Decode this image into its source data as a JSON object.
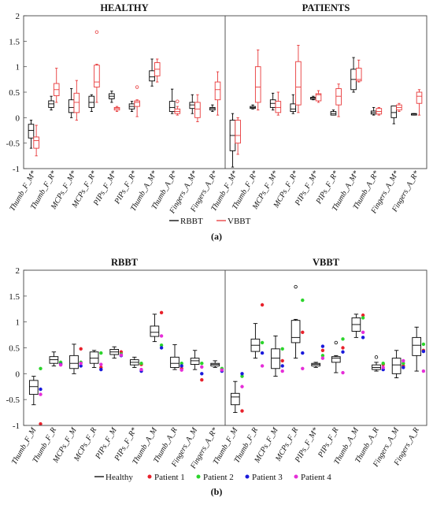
{
  "chart_data": [
    {
      "type": "box",
      "subfigure": "(a)",
      "ylim": [
        -1,
        2
      ],
      "yticks": [
        -1,
        -0.5,
        0,
        0.5,
        1,
        1.5,
        2
      ],
      "colors": {
        "RBBT": "#000000",
        "VBBT": "#e8393a"
      },
      "legend": [
        {
          "name": "RBBT",
          "color": "#000000"
        },
        {
          "name": "VBBT",
          "color": "#e8393a"
        }
      ],
      "panels": [
        {
          "title": "HEALTHY",
          "categories": [
            "Thumb_F_M*",
            "Thumb_F_R*",
            "MCPs_F_M*",
            "MCPs_F_R*",
            "PIPs_F_M*",
            "PIPs_F_R*",
            "Thumb_A_M*",
            "Thumb_A_R*",
            "Fingers_A_M*",
            "Fingers_A_R*"
          ],
          "series": [
            {
              "name": "RBBT",
              "boxes": [
                {
                  "whislo": -0.6,
                  "q1": -0.4,
                  "med": -0.25,
                  "q3": -0.13,
                  "whishi": -0.05,
                  "fliers": []
                },
                {
                  "whislo": 0.15,
                  "q1": 0.2,
                  "med": 0.27,
                  "q3": 0.33,
                  "whishi": 0.42,
                  "fliers": []
                },
                {
                  "whislo": 0.0,
                  "q1": 0.1,
                  "med": 0.2,
                  "q3": 0.35,
                  "whishi": 0.57,
                  "fliers": []
                },
                {
                  "whislo": 0.12,
                  "q1": 0.2,
                  "med": 0.3,
                  "q3": 0.42,
                  "whishi": 0.45,
                  "fliers": []
                },
                {
                  "whislo": 0.3,
                  "q1": 0.37,
                  "med": 0.42,
                  "q3": 0.47,
                  "whishi": 0.52,
                  "fliers": []
                },
                {
                  "whislo": 0.12,
                  "q1": 0.17,
                  "med": 0.22,
                  "q3": 0.27,
                  "whishi": 0.32,
                  "fliers": []
                },
                {
                  "whislo": 0.62,
                  "q1": 0.72,
                  "med": 0.8,
                  "q3": 0.92,
                  "whishi": 1.15,
                  "fliers": []
                },
                {
                  "whislo": 0.08,
                  "q1": 0.12,
                  "med": 0.2,
                  "q3": 0.32,
                  "whishi": 0.56,
                  "fliers": []
                },
                {
                  "whislo": 0.08,
                  "q1": 0.18,
                  "med": 0.25,
                  "q3": 0.3,
                  "whishi": 0.45,
                  "fliers": []
                },
                {
                  "whislo": 0.12,
                  "q1": 0.15,
                  "med": 0.18,
                  "q3": 0.2,
                  "whishi": 0.25,
                  "fliers": []
                }
              ]
            },
            {
              "name": "VBBT",
              "boxes": [
                {
                  "whislo": -0.75,
                  "q1": -0.6,
                  "med": -0.45,
                  "q3": -0.38,
                  "whishi": -0.15,
                  "fliers": []
                },
                {
                  "whislo": 0.3,
                  "q1": 0.43,
                  "med": 0.55,
                  "q3": 0.67,
                  "whishi": 0.97,
                  "fliers": []
                },
                {
                  "whislo": -0.05,
                  "q1": 0.1,
                  "med": 0.3,
                  "q3": 0.48,
                  "whishi": 0.73,
                  "fliers": []
                },
                {
                  "whislo": 0.3,
                  "q1": 0.6,
                  "med": 0.7,
                  "q3": 1.03,
                  "whishi": 1.05,
                  "fliers": [
                    1.68
                  ]
                },
                {
                  "whislo": 0.12,
                  "q1": 0.15,
                  "med": 0.18,
                  "q3": 0.2,
                  "whishi": 0.22,
                  "fliers": []
                },
                {
                  "whislo": 0.02,
                  "q1": 0.22,
                  "med": 0.3,
                  "q3": 0.33,
                  "whishi": 0.35,
                  "fliers": [
                    0.6
                  ]
                },
                {
                  "whislo": 0.7,
                  "q1": 0.82,
                  "med": 0.95,
                  "q3": 1.08,
                  "whishi": 1.15,
                  "fliers": []
                },
                {
                  "whislo": 0.05,
                  "q1": 0.08,
                  "med": 0.12,
                  "q3": 0.17,
                  "whishi": 0.22,
                  "fliers": [
                    0.32
                  ]
                },
                {
                  "whislo": -0.08,
                  "q1": 0.0,
                  "med": 0.17,
                  "q3": 0.3,
                  "whishi": 0.45,
                  "fliers": []
                },
                {
                  "whislo": 0.05,
                  "q1": 0.35,
                  "med": 0.55,
                  "q3": 0.7,
                  "whishi": 0.9,
                  "fliers": []
                }
              ]
            }
          ]
        },
        {
          "title": "PATIENTS",
          "categories": [
            "Thumb_F_M*",
            "Thumb_F_R*",
            "MCPs_F_M*",
            "MCPs_F_R*",
            "PIPs_F_M*",
            "PIPs_F_R*",
            "Thumb_A_M*",
            "Thumb_A_R*",
            "Fingers_A_M*",
            "Fingers_A_R*"
          ],
          "series": [
            {
              "name": "RBBT",
              "boxes": [
                {
                  "whislo": -0.97,
                  "q1": -0.65,
                  "med": -0.35,
                  "q3": -0.05,
                  "whishi": 0.08,
                  "fliers": []
                },
                {
                  "whislo": 0.17,
                  "q1": 0.18,
                  "med": 0.2,
                  "q3": 0.22,
                  "whishi": 0.25,
                  "fliers": []
                },
                {
                  "whislo": 0.15,
                  "q1": 0.2,
                  "med": 0.28,
                  "q3": 0.35,
                  "whishi": 0.48,
                  "fliers": []
                },
                {
                  "whislo": 0.08,
                  "q1": 0.12,
                  "med": 0.17,
                  "q3": 0.27,
                  "whishi": 0.45,
                  "fliers": []
                },
                {
                  "whislo": 0.35,
                  "q1": 0.36,
                  "med": 0.38,
                  "q3": 0.4,
                  "whishi": 0.42,
                  "fliers": []
                },
                {
                  "whislo": 0.05,
                  "q1": 0.05,
                  "med": 0.08,
                  "q3": 0.12,
                  "whishi": 0.15,
                  "fliers": []
                },
                {
                  "whislo": 0.5,
                  "q1": 0.55,
                  "med": 0.75,
                  "q3": 0.95,
                  "whishi": 1.18,
                  "fliers": []
                },
                {
                  "whislo": 0.05,
                  "q1": 0.07,
                  "med": 0.1,
                  "q3": 0.13,
                  "whishi": 0.2,
                  "fliers": []
                },
                {
                  "whislo": -0.12,
                  "q1": 0.0,
                  "med": 0.1,
                  "q3": 0.23,
                  "whishi": 0.23,
                  "fliers": []
                },
                {
                  "whislo": 0.05,
                  "q1": 0.05,
                  "med": 0.07,
                  "q3": 0.08,
                  "whishi": 0.08,
                  "fliers": []
                }
              ]
            },
            {
              "name": "VBBT",
              "boxes": [
                {
                  "whislo": -0.72,
                  "q1": -0.5,
                  "med": -0.35,
                  "q3": -0.05,
                  "whishi": 0.0,
                  "fliers": []
                },
                {
                  "whislo": 0.15,
                  "q1": 0.3,
                  "med": 0.6,
                  "q3": 1.0,
                  "whishi": 1.33,
                  "fliers": []
                },
                {
                  "whislo": 0.05,
                  "q1": 0.1,
                  "med": 0.2,
                  "q3": 0.32,
                  "whishi": 0.5,
                  "fliers": []
                },
                {
                  "whislo": 0.1,
                  "q1": 0.25,
                  "med": 0.6,
                  "q3": 1.1,
                  "whishi": 1.42,
                  "fliers": []
                },
                {
                  "whislo": 0.3,
                  "q1": 0.33,
                  "med": 0.45,
                  "q3": 0.47,
                  "whishi": 0.53,
                  "fliers": []
                },
                {
                  "whislo": 0.02,
                  "q1": 0.25,
                  "med": 0.42,
                  "q3": 0.57,
                  "whishi": 0.66,
                  "fliers": []
                },
                {
                  "whislo": 0.7,
                  "q1": 0.72,
                  "med": 0.75,
                  "q3": 0.97,
                  "whishi": 1.13,
                  "fliers": []
                },
                {
                  "whislo": 0.05,
                  "q1": 0.07,
                  "med": 0.12,
                  "q3": 0.18,
                  "whishi": 0.2,
                  "fliers": []
                },
                {
                  "whislo": 0.12,
                  "q1": 0.15,
                  "med": 0.2,
                  "q3": 0.25,
                  "whishi": 0.28,
                  "fliers": []
                },
                {
                  "whislo": 0.05,
                  "q1": 0.28,
                  "med": 0.42,
                  "q3": 0.5,
                  "whishi": 0.55,
                  "fliers": []
                }
              ]
            }
          ]
        }
      ]
    },
    {
      "type": "box",
      "subfigure": "(b)",
      "ylim": [
        -1,
        2
      ],
      "yticks": [
        -1,
        -0.5,
        0,
        0.5,
        1,
        1.5,
        2
      ],
      "legend": [
        {
          "name": "Healthy",
          "kind": "box",
          "color": "#000000"
        },
        {
          "name": "Patient 1",
          "kind": "dot",
          "color": "#e8212b"
        },
        {
          "name": "Patient 2",
          "kind": "dot",
          "color": "#2bd42b"
        },
        {
          "name": "Patient 3",
          "kind": "dot",
          "color": "#1a1adb"
        },
        {
          "name": "Patient 4",
          "kind": "dot",
          "color": "#e52ed8"
        }
      ],
      "panels": [
        {
          "title": "RBBT",
          "categories": [
            "Thumb_F_M",
            "Thumb_F_R",
            "MCPs_F_M",
            "MCPs_F_R",
            "PIPs_F_M",
            "PIPs_F_R*",
            "Thumb_A_M",
            "Thumb_A_R",
            "Fingers_A_M",
            "Fingers_A_R*"
          ],
          "healthy": [
            {
              "whislo": -0.6,
              "q1": -0.4,
              "med": -0.25,
              "q3": -0.13,
              "whishi": -0.05,
              "fliers": []
            },
            {
              "whislo": 0.15,
              "q1": 0.2,
              "med": 0.27,
              "q3": 0.33,
              "whishi": 0.42,
              "fliers": []
            },
            {
              "whislo": 0.0,
              "q1": 0.1,
              "med": 0.2,
              "q3": 0.35,
              "whishi": 0.57,
              "fliers": []
            },
            {
              "whislo": 0.12,
              "q1": 0.2,
              "med": 0.3,
              "q3": 0.42,
              "whishi": 0.45,
              "fliers": []
            },
            {
              "whislo": 0.3,
              "q1": 0.37,
              "med": 0.42,
              "q3": 0.47,
              "whishi": 0.52,
              "fliers": []
            },
            {
              "whislo": 0.12,
              "q1": 0.17,
              "med": 0.22,
              "q3": 0.27,
              "whishi": 0.32,
              "fliers": []
            },
            {
              "whislo": 0.62,
              "q1": 0.72,
              "med": 0.8,
              "q3": 0.92,
              "whishi": 1.15,
              "fliers": []
            },
            {
              "whislo": 0.08,
              "q1": 0.12,
              "med": 0.2,
              "q3": 0.32,
              "whishi": 0.56,
              "fliers": []
            },
            {
              "whislo": 0.08,
              "q1": 0.18,
              "med": 0.25,
              "q3": 0.3,
              "whishi": 0.45,
              "fliers": []
            },
            {
              "whislo": 0.12,
              "q1": 0.15,
              "med": 0.18,
              "q3": 0.2,
              "whishi": 0.25,
              "fliers": []
            }
          ],
          "patients": [
            {
              "name": "Patient 1",
              "values": [
                -0.97,
                0.2,
                0.48,
                0.12,
                0.42,
                0.18,
                1.18,
                0.1,
                -0.12,
                0.08
              ]
            },
            {
              "name": "Patient 2",
              "values": [
                0.1,
                0.22,
                0.22,
                0.4,
                0.38,
                0.2,
                0.55,
                0.2,
                0.2,
                0.1
              ]
            },
            {
              "name": "Patient 3",
              "values": [
                -0.3,
                0.18,
                0.15,
                0.08,
                0.35,
                0.05,
                0.5,
                0.15,
                0.0,
                0.05
              ]
            },
            {
              "name": "Patient 4",
              "values": [
                -0.4,
                0.17,
                0.2,
                0.18,
                0.36,
                0.08,
                0.73,
                0.07,
                0.13,
                0.07
              ]
            }
          ]
        },
        {
          "title": "VBBT",
          "categories": [
            "Thumb_F_M",
            "Thumb_F_R",
            "MCPs_F_M",
            "MCPs_F_R",
            "PIPs_F_M*",
            "PIPs_F_R",
            "Thumb_A_M",
            "Thumb_A_R",
            "Fingers_A_M",
            "Fingers_A_R"
          ],
          "healthy": [
            {
              "whislo": -0.75,
              "q1": -0.6,
              "med": -0.45,
              "q3": -0.38,
              "whishi": -0.15,
              "fliers": []
            },
            {
              "whislo": 0.3,
              "q1": 0.43,
              "med": 0.55,
              "q3": 0.67,
              "whishi": 0.97,
              "fliers": []
            },
            {
              "whislo": -0.05,
              "q1": 0.1,
              "med": 0.3,
              "q3": 0.48,
              "whishi": 0.73,
              "fliers": []
            },
            {
              "whislo": 0.3,
              "q1": 0.6,
              "med": 0.7,
              "q3": 1.03,
              "whishi": 1.05,
              "fliers": [
                1.68
              ]
            },
            {
              "whislo": 0.12,
              "q1": 0.15,
              "med": 0.18,
              "q3": 0.2,
              "whishi": 0.22,
              "fliers": []
            },
            {
              "whislo": 0.02,
              "q1": 0.22,
              "med": 0.3,
              "q3": 0.33,
              "whishi": 0.35,
              "fliers": [
                0.6
              ]
            },
            {
              "whislo": 0.7,
              "q1": 0.82,
              "med": 0.95,
              "q3": 1.08,
              "whishi": 1.15,
              "fliers": []
            },
            {
              "whislo": 0.05,
              "q1": 0.08,
              "med": 0.12,
              "q3": 0.17,
              "whishi": 0.22,
              "fliers": [
                0.32
              ]
            },
            {
              "whislo": -0.08,
              "q1": 0.0,
              "med": 0.17,
              "q3": 0.3,
              "whishi": 0.45,
              "fliers": []
            },
            {
              "whislo": 0.05,
              "q1": 0.35,
              "med": 0.55,
              "q3": 0.7,
              "whishi": 0.9,
              "fliers": []
            }
          ],
          "patients": [
            {
              "name": "Patient 1",
              "values": [
                -0.72,
                1.33,
                0.25,
                0.8,
                0.45,
                0.5,
                1.13,
                0.18,
                0.15,
                0.45
              ]
            },
            {
              "name": "Patient 2",
              "values": [
                -0.05,
                0.6,
                0.48,
                1.42,
                0.35,
                0.67,
                1.08,
                0.2,
                0.2,
                0.57
              ]
            },
            {
              "name": "Patient 3",
              "values": [
                0.0,
                0.4,
                0.15,
                0.4,
                0.53,
                0.42,
                0.7,
                0.08,
                0.12,
                0.43
              ]
            },
            {
              "name": "Patient 4",
              "values": [
                -0.25,
                0.15,
                0.05,
                0.1,
                0.3,
                0.02,
                0.8,
                0.12,
                0.25,
                0.05
              ]
            }
          ]
        }
      ]
    }
  ]
}
